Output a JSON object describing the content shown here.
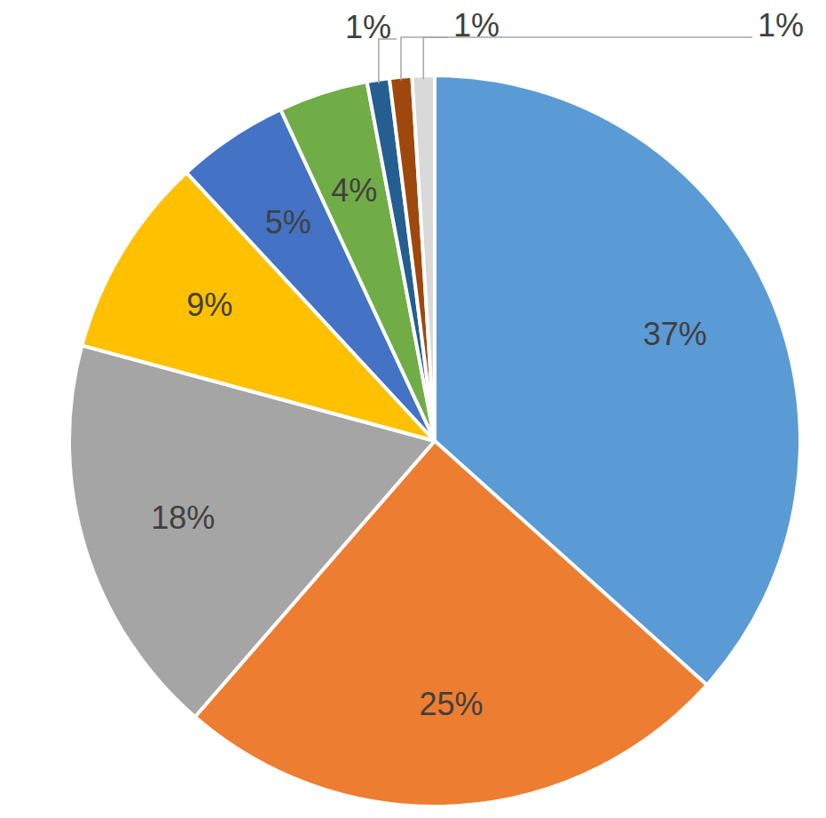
{
  "chart_data": {
    "type": "pie",
    "values": [
      37,
      25,
      18,
      9,
      5,
      4,
      1,
      1,
      1
    ],
    "value_labels": [
      "37%",
      "25%",
      "18%",
      "9%",
      "5%",
      "4%",
      "1%",
      "1%",
      "1%"
    ],
    "colors": [
      "#5b9bd5",
      "#ed7d31",
      "#a5a5a5",
      "#ffc000",
      "#4472c4",
      "#70ad47",
      "#255e91",
      "#9e480e",
      "#d9d9d9"
    ],
    "data_labels": true
  }
}
